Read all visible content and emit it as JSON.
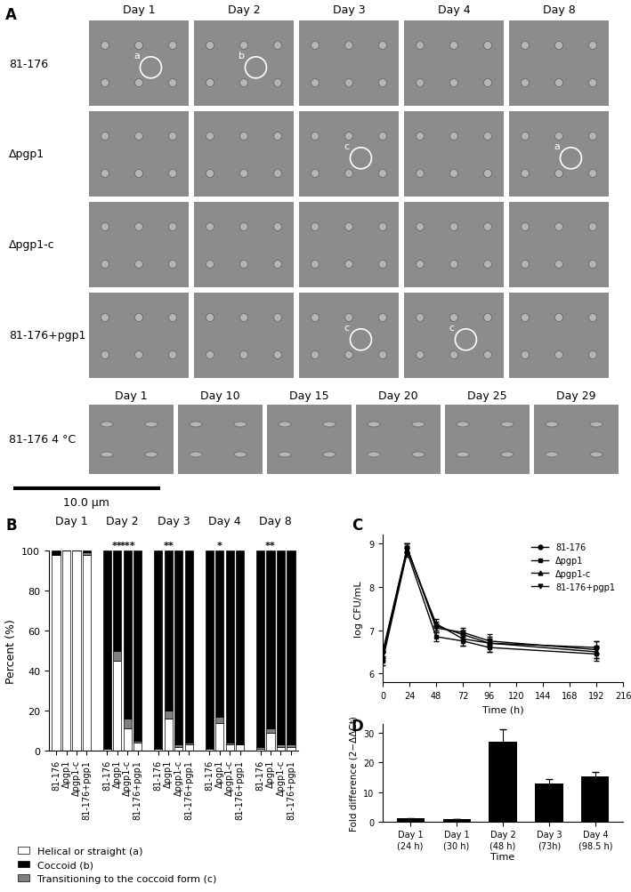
{
  "micrographs": {
    "panel": "A",
    "days": [
      "Day 1",
      "Day 2",
      "Day 3",
      "Day 4",
      "Day 8"
    ],
    "strains": [
      "81-176",
      "Δpgp1",
      "Δpgp1-c",
      "81-176+pgp1"
    ],
    "cold_strain": "81-176 4 °C",
    "cold_days": [
      "Day 1",
      "Day 10",
      "Day 15",
      "Day 20",
      "Day 25",
      "Day 29"
    ],
    "markers": [
      {
        "strain": "81-176",
        "day": "Day 1",
        "label": "a"
      },
      {
        "strain": "81-176",
        "day": "Day 2",
        "label": "b"
      },
      {
        "strain": "Δpgp1",
        "day": "Day 3",
        "label": "c"
      },
      {
        "strain": "Δpgp1",
        "day": "Day 8",
        "label": "a"
      },
      {
        "strain": "81-176+pgp1",
        "day": "Day 3",
        "label": "c"
      },
      {
        "strain": "81-176+pgp1",
        "day": "Day 4",
        "label": "c"
      }
    ],
    "scale_bar": "10.0 µm"
  },
  "chart_data": [
    {
      "panel": "B",
      "type": "bar",
      "stacked": true,
      "groups": [
        "Day 1",
        "Day 2",
        "Day 3",
        "Day 4",
        "Day 8"
      ],
      "categories": [
        "81-176",
        "Δpgp1",
        "Δpgp1-c",
        "81-176+pgp1",
        "81-176",
        "Δpgp1",
        "Δpgp1-c",
        "81-176+pgp1",
        "81-176",
        "Δpgp1",
        "Δpgp1-c",
        "81-176+pgp1",
        "81-176",
        "Δpgp1",
        "Δpgp1-c",
        "81-176+pgp1",
        "81-176",
        "Δpgp1",
        "Δpgp1-c",
        "81-176+pgp1"
      ],
      "y_label": "Percent (%)",
      "ylim": [
        0,
        100
      ],
      "yticks": [
        0,
        20,
        40,
        60,
        80,
        100
      ],
      "series": [
        {
          "name": "Helical or straight (a)",
          "color": "#ffffff",
          "values": [
            98,
            100,
            100,
            98,
            1,
            45,
            11,
            4,
            1,
            16,
            2,
            3,
            1,
            14,
            3,
            3,
            1,
            9,
            2,
            2
          ]
        },
        {
          "name": "Coccoid (b)",
          "color": "#000000",
          "values": [
            2,
            0,
            0,
            1,
            99,
            50,
            84,
            95,
            99,
            80,
            97,
            96,
            99,
            83,
            96,
            97,
            98,
            89,
            97,
            97
          ]
        },
        {
          "name": "Transitioning to the coccoid form (c)",
          "color": "#808080",
          "values": [
            0,
            0,
            0,
            1,
            0,
            5,
            5,
            1,
            0,
            4,
            1,
            1,
            0,
            3,
            1,
            0,
            1,
            2,
            1,
            1
          ]
        }
      ],
      "annotations": [
        {
          "index": 5,
          "text": "**"
        },
        {
          "index": 6,
          "text": "***"
        },
        {
          "index": 9,
          "text": "**"
        },
        {
          "index": 13,
          "text": "*"
        },
        {
          "index": 17,
          "text": "**"
        }
      ],
      "legend": "lower left"
    },
    {
      "panel": "C",
      "type": "line",
      "x_label": "Time (h)",
      "y_label": "log CFU/mL",
      "x": [
        0,
        22,
        48,
        72,
        96,
        192
      ],
      "xlim": [
        0,
        216
      ],
      "xticks": [
        0,
        24,
        48,
        72,
        96,
        120,
        144,
        168,
        192,
        216
      ],
      "ylim": [
        5.8,
        9.2
      ],
      "yticks": [
        6,
        7,
        8,
        9
      ],
      "series": [
        {
          "name": "81-176",
          "color": "#000000",
          "marker": "circle",
          "values": [
            6.5,
            8.9,
            7.1,
            6.9,
            6.7,
            6.6
          ],
          "errors": [
            0.1,
            0.1,
            0.1,
            0.1,
            0.1,
            0.15
          ]
        },
        {
          "name": "Δpgp1",
          "color": "#000000",
          "marker": "square",
          "values": [
            6.3,
            8.8,
            6.85,
            6.75,
            6.6,
            6.45
          ],
          "errors": [
            0.1,
            0.1,
            0.1,
            0.1,
            0.1,
            0.15
          ]
        },
        {
          "name": "Δpgp1-c",
          "color": "#000000",
          "marker": "triangle_up",
          "values": [
            6.4,
            8.85,
            7.15,
            6.8,
            6.7,
            6.5
          ],
          "errors": [
            0.1,
            0.15,
            0.1,
            0.15,
            0.2,
            0.15
          ]
        },
        {
          "name": "81-176+pgp1",
          "color": "#000000",
          "marker": "triangle_down",
          "values": [
            6.45,
            8.9,
            7.05,
            6.95,
            6.75,
            6.55
          ],
          "errors": [
            0.1,
            0.1,
            0.1,
            0.1,
            0.1,
            0.2
          ]
        }
      ],
      "legend": "upper right"
    },
    {
      "panel": "D",
      "type": "bar",
      "x_label": "Time",
      "y_label": "Fold difference (2−ΔΔCt)",
      "categories": [
        "Day 1\n(24 h)",
        "Day 1\n(30 h)",
        "Day 2\n(48 h)",
        "Day 3\n(73h)",
        "Day 4\n(98.5 h)"
      ],
      "values": [
        1.0,
        0.8,
        27,
        12.8,
        15.3
      ],
      "errors": [
        0.2,
        0.1,
        4.3,
        1.7,
        1.6
      ],
      "color": "#000000",
      "ylim": [
        0,
        33
      ],
      "yticks": [
        0,
        10,
        20,
        30
      ]
    }
  ]
}
